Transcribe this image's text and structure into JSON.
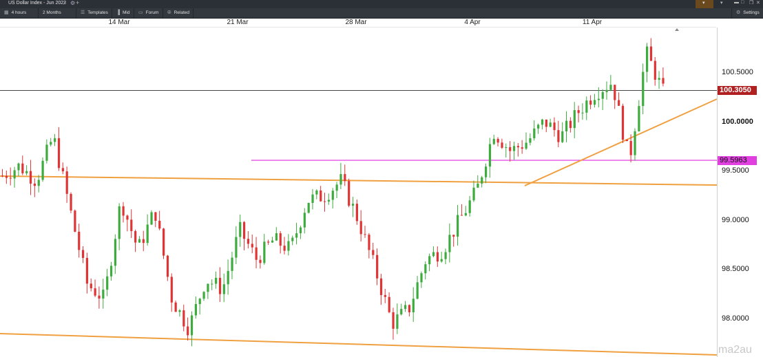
{
  "window": {
    "instrument_title": "US Dollar Index - Jun 2022",
    "right_box_label": "▾"
  },
  "toolbar": {
    "timeframe": "4 hours",
    "range": "2 Months",
    "templates": "Templates",
    "price_type": "Mid",
    "forum": "Forum",
    "related": "Related",
    "settings": "Settings"
  },
  "xaxis": {
    "labels": [
      "14 Mar",
      "21 Mar",
      "28 Mar",
      "4 Apr",
      "11 Apr"
    ]
  },
  "yaxis": {
    "labels": [
      "100.5000",
      "100.0000",
      "99.5000",
      "99.0000",
      "98.5000",
      "98.0000"
    ],
    "current_price": "100.3050",
    "level_tag": "99.5963"
  },
  "colors": {
    "up": "#3dab3d",
    "down": "#e03434",
    "trendline": "#f0a040",
    "level": "#e040e0",
    "current_tag_bg": "#b02020"
  },
  "watermark": "ma2au",
  "chart_data": {
    "type": "candlestick",
    "x": [
      "14 Mar",
      "21 Mar",
      "28 Mar",
      "4 Apr",
      "11 Apr"
    ],
    "y_ticks": [
      100.5,
      100.0,
      99.5,
      99.0,
      98.5,
      98.0
    ],
    "current_price": 100.305,
    "horizontal_level": 99.5963,
    "trend": [
      99.45,
      99.55,
      99.4,
      99.85,
      99.1,
      98.35,
      98.2,
      99.2,
      98.7,
      99.1,
      98.2,
      97.9,
      98.4,
      98.3,
      98.9,
      98.6,
      98.8,
      98.7,
      99.2,
      99.25,
      99.4,
      99.0,
      98.5,
      97.95,
      98.1,
      98.6,
      98.7,
      99.0,
      99.3,
      99.9,
      99.7,
      99.8,
      100.0,
      99.85,
      100.1,
      100.3,
      100.4,
      99.6,
      100.7,
      100.3
    ],
    "year_range": [
      97.7,
      100.8
    ]
  }
}
